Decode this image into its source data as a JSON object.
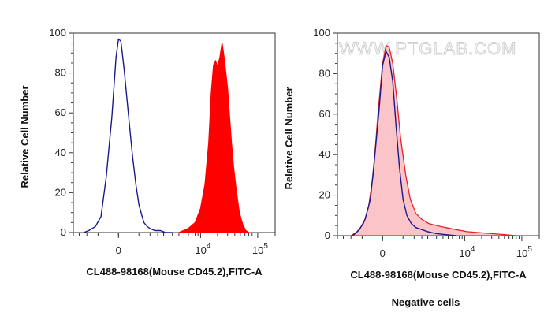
{
  "chart_data": [
    {
      "type": "area",
      "ylabel": "Relative Cell Number",
      "xlabel": "CL488-98168(Mouse CD45.2),FITC-A",
      "ylim": [
        0,
        100
      ],
      "yticks": [
        0,
        20,
        40,
        60,
        80,
        100
      ],
      "xscale": "biexponential",
      "xticks": [
        {
          "label": "0",
          "sup": ""
        },
        {
          "label": "10",
          "sup": "4"
        },
        {
          "label": "10",
          "sup": "5"
        }
      ],
      "series": [
        {
          "style": "outline",
          "color": "#1a1a8c",
          "x": [
            -1200,
            -900,
            -600,
            -400,
            -250,
            -120,
            -40,
            0,
            40,
            100,
            200,
            300,
            400,
            500,
            600,
            700,
            850,
            1000,
            1300,
            1700,
            2200,
            3000
          ],
          "y": [
            0,
            1,
            3,
            8,
            28,
            58,
            88,
            97,
            96,
            82,
            58,
            38,
            24,
            14,
            9,
            5,
            3,
            2,
            1,
            1,
            0,
            0
          ]
        },
        {
          "style": "filled",
          "color": "#ff0000",
          "x": [
            4000,
            6000,
            8000,
            10000,
            12000,
            14000,
            15500,
            17000,
            18500,
            20000,
            22000,
            24000,
            26000,
            28000,
            30000,
            32000,
            35000,
            38000,
            42000,
            48000,
            55000,
            62000,
            70000
          ],
          "y": [
            0,
            2,
            5,
            12,
            24,
            45,
            70,
            84,
            86,
            83,
            88,
            95,
            88,
            80,
            72,
            60,
            45,
            33,
            22,
            10,
            4,
            1,
            0
          ]
        }
      ]
    },
    {
      "type": "area",
      "ylabel": "Relative Cell Number",
      "xlabel": "CL488-98168(Mouse CD45.2),FITC-A",
      "ylim": [
        0,
        100
      ],
      "yticks": [
        0,
        20,
        40,
        60,
        80,
        100
      ],
      "xscale": "biexponential",
      "xticks": [
        {
          "label": "0",
          "sup": ""
        },
        {
          "label": "10",
          "sup": "4"
        },
        {
          "label": "10",
          "sup": "5"
        }
      ],
      "annotations": [
        "WWW.PTGLAB.COM"
      ],
      "series": [
        {
          "style": "filled",
          "color": "#e8202a",
          "fill": "#fbc4c9",
          "x": [
            -1000,
            -700,
            -450,
            -300,
            -180,
            -80,
            0,
            60,
            120,
            200,
            300,
            420,
            600,
            800,
            1100,
            1500,
            2100,
            3000,
            4500,
            7000,
            11000,
            18000,
            30000,
            50000,
            80000
          ],
          "y": [
            0,
            2,
            6,
            14,
            30,
            60,
            85,
            94,
            93,
            85,
            68,
            48,
            30,
            18,
            11,
            8,
            6,
            5,
            4,
            3,
            2,
            1.5,
            1,
            0.5,
            0
          ]
        },
        {
          "style": "outline",
          "color": "#1a1a8c",
          "x": [
            -900,
            -600,
            -400,
            -250,
            -150,
            -60,
            0,
            60,
            120,
            200,
            280,
            380,
            500,
            650,
            850,
            1100,
            1500,
            2000,
            3000,
            4500,
            7000
          ],
          "y": [
            0,
            3,
            8,
            18,
            38,
            62,
            84,
            91,
            88,
            76,
            55,
            34,
            18,
            10,
            6,
            4,
            3,
            2,
            1,
            0.5,
            0
          ]
        }
      ]
    }
  ],
  "caption": "Negative cells"
}
